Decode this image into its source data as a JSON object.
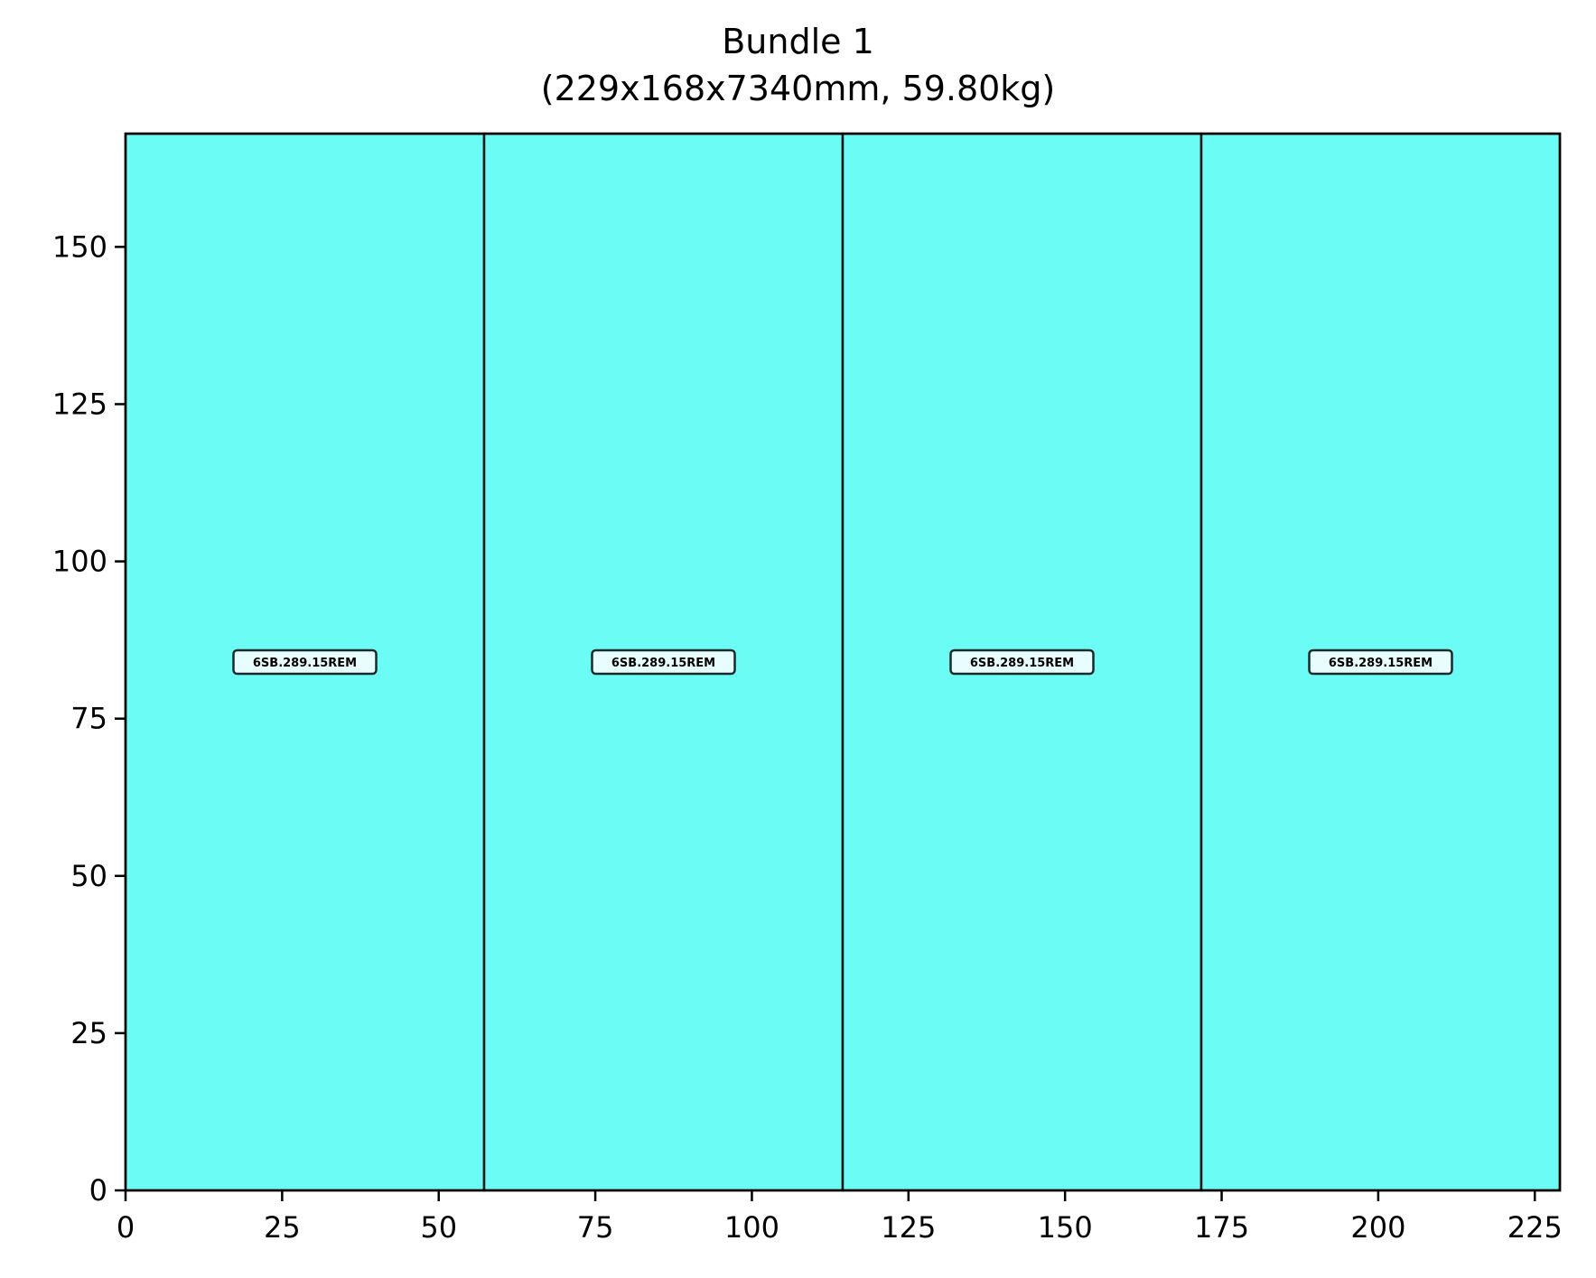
{
  "chart_data": {
    "type": "bar",
    "title_line1": "Bundle 1",
    "title_line2": "(229x168x7340mm, 59.80kg)",
    "xlabel": "",
    "ylabel": "",
    "xlim": [
      0,
      229
    ],
    "ylim": [
      0,
      168
    ],
    "xticks": [
      0,
      25,
      50,
      75,
      100,
      125,
      150,
      175,
      200,
      225
    ],
    "yticks": [
      0,
      25,
      50,
      75,
      100,
      125,
      150
    ],
    "grid": false,
    "fill_color": "#6afcf5",
    "pieces": [
      {
        "label": "6SB.289.15REM",
        "x0": 0,
        "x1": 57.25,
        "y0": 0,
        "y1": 168
      },
      {
        "label": "6SB.289.15REM",
        "x0": 57.25,
        "x1": 114.5,
        "y0": 0,
        "y1": 168
      },
      {
        "label": "6SB.289.15REM",
        "x0": 114.5,
        "x1": 171.75,
        "y0": 0,
        "y1": 168
      },
      {
        "label": "6SB.289.15REM",
        "x0": 171.75,
        "x1": 229,
        "y0": 0,
        "y1": 168
      }
    ]
  }
}
